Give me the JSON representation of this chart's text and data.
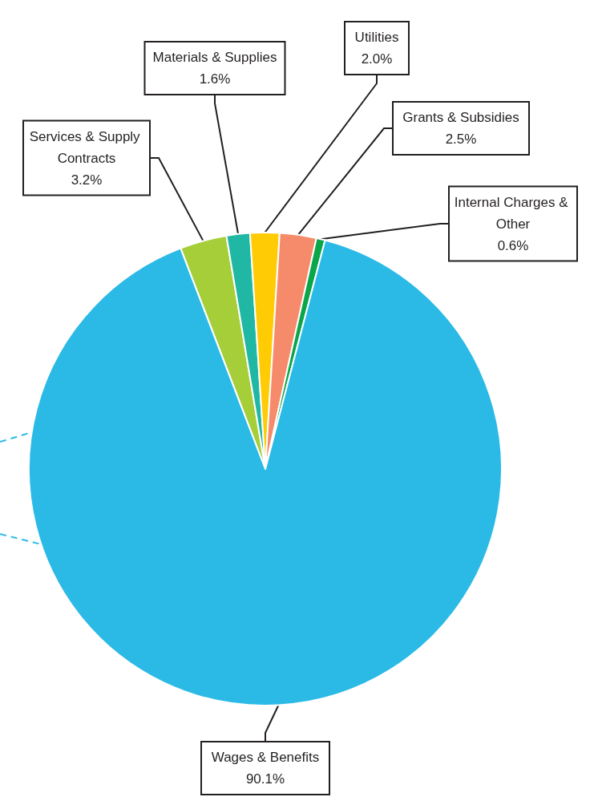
{
  "chart_data": {
    "type": "pie",
    "categories": [
      "Services & Supply Contracts",
      "Materials & Supplies",
      "Utilities",
      "Grants & Subsidies",
      "Internal Charges & Other",
      "Wages & Benefits"
    ],
    "values": [
      3.2,
      1.6,
      2.0,
      2.5,
      0.6,
      90.1
    ],
    "value_labels": [
      "3.2%",
      "1.6%",
      "2.0%",
      "2.5%",
      "0.6%",
      "90.1%"
    ],
    "colors": [
      "#a6ce39",
      "#20b8a4",
      "#ffcb05",
      "#f58b6a",
      "#0aa64a",
      "#2bbae6"
    ]
  }
}
